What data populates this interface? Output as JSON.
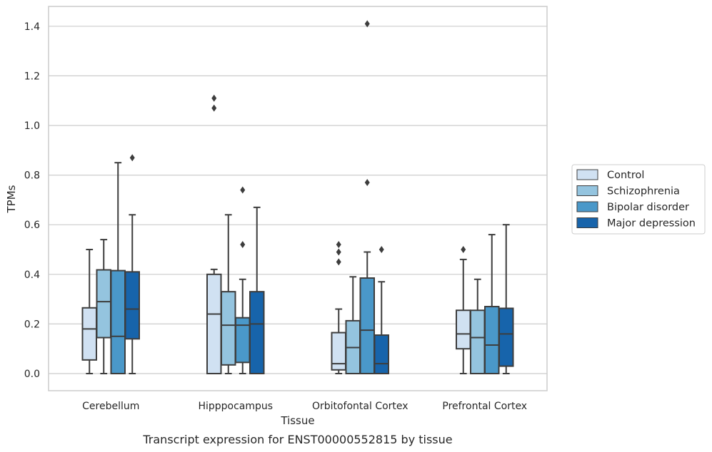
{
  "caption": "Transcript expression for ENST00000552815 by tissue",
  "chart_data": {
    "type": "box",
    "xlabel": "Tissue",
    "ylabel": "TPMs",
    "ylim": [
      -0.07,
      1.48
    ],
    "yticks": [
      0.0,
      0.2,
      0.4,
      0.6,
      0.8,
      1.0,
      1.2,
      1.4
    ],
    "ytick_labels": [
      "0.0",
      "0.2",
      "0.4",
      "0.6",
      "0.8",
      "1.0",
      "1.2",
      "1.4"
    ],
    "grid": "horizontal",
    "legend_position": "right",
    "categories": [
      "Cerebellum",
      "Hipppocampus",
      "Orbitofontal Cortex",
      "Prefrontal Cortex"
    ],
    "series": [
      {
        "name": "Control",
        "color": "#d0e1f2",
        "boxes": [
          {
            "whislo": 0.0,
            "q1": 0.055,
            "med": 0.18,
            "q3": 0.265,
            "whishi": 0.5,
            "fliers": []
          },
          {
            "whislo": 0.0,
            "q1": 0.0,
            "med": 0.24,
            "q3": 0.4,
            "whishi": 0.42,
            "fliers": [
              1.07,
              1.11
            ]
          },
          {
            "whislo": 0.0,
            "q1": 0.015,
            "med": 0.04,
            "q3": 0.165,
            "whishi": 0.26,
            "fliers": [
              0.45,
              0.49,
              0.52
            ]
          },
          {
            "whislo": 0.0,
            "q1": 0.1,
            "med": 0.16,
            "q3": 0.255,
            "whishi": 0.46,
            "fliers": [
              0.5
            ]
          }
        ]
      },
      {
        "name": "Schizophrenia",
        "color": "#94c4df",
        "boxes": [
          {
            "whislo": 0.0,
            "q1": 0.145,
            "med": 0.29,
            "q3": 0.418,
            "whishi": 0.54,
            "fliers": []
          },
          {
            "whislo": 0.0,
            "q1": 0.035,
            "med": 0.195,
            "q3": 0.33,
            "whishi": 0.64,
            "fliers": []
          },
          {
            "whislo": 0.0,
            "q1": 0.0,
            "med": 0.105,
            "q3": 0.213,
            "whishi": 0.39,
            "fliers": []
          },
          {
            "whislo": 0.0,
            "q1": 0.0,
            "med": 0.145,
            "q3": 0.255,
            "whishi": 0.38,
            "fliers": []
          }
        ]
      },
      {
        "name": "Bipolar disorder",
        "color": "#4a98c9",
        "boxes": [
          {
            "whislo": 0.0,
            "q1": 0.0,
            "med": 0.15,
            "q3": 0.415,
            "whishi": 0.85,
            "fliers": []
          },
          {
            "whislo": 0.0,
            "q1": 0.045,
            "med": 0.195,
            "q3": 0.225,
            "whishi": 0.38,
            "fliers": [
              0.52,
              0.74
            ]
          },
          {
            "whislo": 0.0,
            "q1": 0.0,
            "med": 0.175,
            "q3": 0.385,
            "whishi": 0.49,
            "fliers": [
              0.77,
              1.41
            ]
          },
          {
            "whislo": 0.0,
            "q1": 0.0,
            "med": 0.115,
            "q3": 0.27,
            "whishi": 0.56,
            "fliers": []
          }
        ]
      },
      {
        "name": "Major depression",
        "color": "#1764ab",
        "boxes": [
          {
            "whislo": 0.0,
            "q1": 0.14,
            "med": 0.26,
            "q3": 0.41,
            "whishi": 0.64,
            "fliers": [
              0.87
            ]
          },
          {
            "whislo": 0.0,
            "q1": 0.0,
            "med": 0.2,
            "q3": 0.33,
            "whishi": 0.67,
            "fliers": []
          },
          {
            "whislo": 0.0,
            "q1": 0.0,
            "med": 0.04,
            "q3": 0.155,
            "whishi": 0.37,
            "fliers": [
              0.5
            ]
          },
          {
            "whislo": 0.0,
            "q1": 0.03,
            "med": 0.16,
            "q3": 0.263,
            "whishi": 0.6,
            "fliers": []
          }
        ]
      }
    ]
  }
}
